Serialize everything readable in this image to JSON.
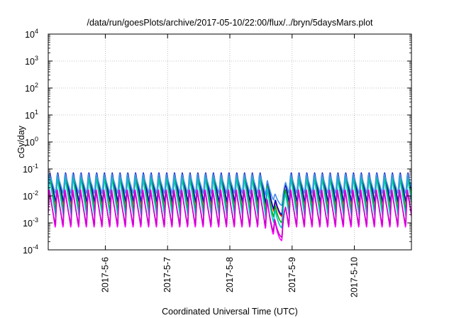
{
  "chart_data": {
    "type": "line",
    "title": "/data/run/goesPlots/archive/2017-05-10/22:00/flux/../bryn/5daysMars.plot",
    "xlabel": "Coordinated Universal Time (UTC)",
    "ylabel": "cGy/day",
    "yscale": "log",
    "ylim": [
      0.0001,
      10000
    ],
    "xlim": [
      "2017-05-05 02:00",
      "2017-05-10 22:00"
    ],
    "grid": true,
    "y_ticks": [
      {
        "base": "10",
        "exp": "-4"
      },
      {
        "base": "10",
        "exp": "-3"
      },
      {
        "base": "10",
        "exp": "-2"
      },
      {
        "base": "10",
        "exp": "-1"
      },
      {
        "base": "10",
        "exp": "0"
      },
      {
        "base": "10",
        "exp": "1"
      },
      {
        "base": "10",
        "exp": "2"
      },
      {
        "base": "10",
        "exp": "3"
      },
      {
        "base": "10",
        "exp": "4"
      }
    ],
    "x_ticks": [
      {
        "label": "2017-5-6",
        "date": "2017-05-06"
      },
      {
        "label": "2017-5-7",
        "date": "2017-05-07"
      },
      {
        "label": "2017-5-8",
        "date": "2017-05-08"
      },
      {
        "label": "2017-5-9",
        "date": "2017-05-09"
      },
      {
        "label": "2017-5-10",
        "date": "2017-05-10"
      }
    ],
    "oscillation_period_hours": 3,
    "dropout": {
      "start": "2017-05-08 13:00",
      "min": "2017-05-08 20:00",
      "end": "2017-05-08 21:30"
    },
    "series": [
      {
        "color": "#ff0000",
        "peak": 0.075,
        "trough": 0.0048
      },
      {
        "color": "#0000c8",
        "peak": 0.08,
        "trough": 0.0055
      },
      {
        "color": "#00aa00",
        "peak": 0.06,
        "trough": 0.0028
      },
      {
        "color": "#00c8c8",
        "peak": 0.05,
        "trough": 0.0018
      },
      {
        "color": "#4a90e8",
        "peak": 0.07,
        "trough": 0.012
      },
      {
        "color": "#ff00ff",
        "peak": 0.02,
        "trough": 0.0006
      },
      {
        "color": "#cc00cc",
        "peak": 0.016,
        "trough": 0.0008
      }
    ]
  }
}
